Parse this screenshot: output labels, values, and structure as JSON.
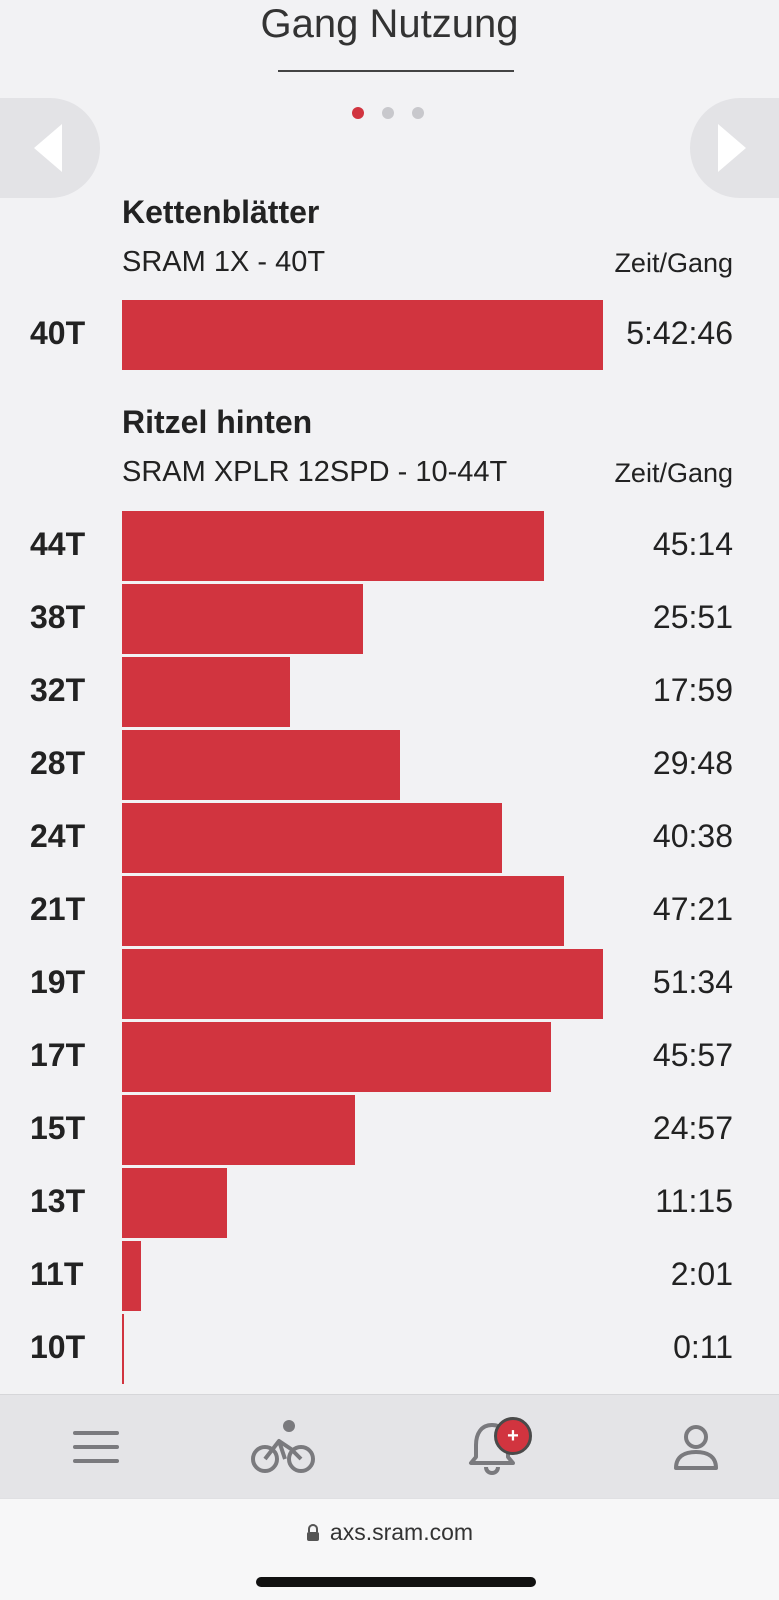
{
  "header": {
    "title": "Gang Nutzung",
    "pager": {
      "count": 3,
      "active": 0
    }
  },
  "chainrings": {
    "title": "Kettenblätter",
    "subtitle": "SRAM 1X - 40T",
    "column_header": "Zeit/Gang",
    "rows": [
      {
        "label": "40T",
        "value": "5:42:46",
        "fraction": 1.0
      }
    ]
  },
  "cassette": {
    "title": "Ritzel hinten",
    "subtitle": "SRAM XPLR 12SPD - 10-44T",
    "column_header": "Zeit/Gang",
    "rows": [
      {
        "label": "44T",
        "value": "45:14",
        "fraction": 0.877
      },
      {
        "label": "38T",
        "value": "25:51",
        "fraction": 0.502
      },
      {
        "label": "32T",
        "value": "17:59",
        "fraction": 0.35
      },
      {
        "label": "28T",
        "value": "29:48",
        "fraction": 0.579
      },
      {
        "label": "24T",
        "value": "40:38",
        "fraction": 0.789
      },
      {
        "label": "21T",
        "value": "47:21",
        "fraction": 0.919
      },
      {
        "label": "19T",
        "value": "51:34",
        "fraction": 1.0
      },
      {
        "label": "17T",
        "value": "45:57",
        "fraction": 0.891
      },
      {
        "label": "15T",
        "value": "24:57",
        "fraction": 0.484
      },
      {
        "label": "13T",
        "value": "11:15",
        "fraction": 0.218
      },
      {
        "label": "11T",
        "value": "2:01",
        "fraction": 0.039
      },
      {
        "label": "10T",
        "value": "0:11",
        "fraction": 0.004
      }
    ]
  },
  "bottom_nav": {
    "items": [
      "menu-icon",
      "bike-icon",
      "bell-icon",
      "profile-icon"
    ],
    "notification_badge": "+"
  },
  "browser": {
    "url": "axs.sram.com"
  },
  "colors": {
    "accent": "#d1343f",
    "background": "#f2f2f4"
  }
}
